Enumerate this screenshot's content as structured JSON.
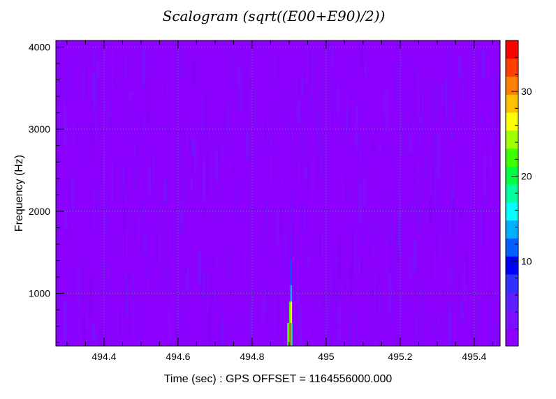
{
  "chart_data": {
    "type": "heatmap",
    "title": "Scalogram (sqrt((E00+E90)/2))",
    "xlabel": "Time (sec) : GPS OFFSET = 1164556000.000",
    "ylabel": "Frequency (Hz)",
    "xlim": [
      494.27,
      495.47
    ],
    "ylim": [
      360,
      4080
    ],
    "x_ticks": [
      494.4,
      494.6,
      494.8,
      495,
      495.2,
      495.4
    ],
    "x_tick_labels": [
      "494.4",
      "494.6",
      "494.8",
      "495",
      "495.2",
      "495.4"
    ],
    "y_ticks": [
      1000,
      2000,
      3000,
      4000
    ],
    "y_tick_labels": [
      "1000",
      "2000",
      "3000",
      "4000"
    ],
    "grid": true,
    "colorbar": {
      "min": 0,
      "max": 36,
      "ticks": [
        10,
        20,
        30
      ],
      "tick_labels": [
        "10",
        "20",
        "30"
      ],
      "palette": [
        "#8b00ff",
        "#7a10ff",
        "#5a20ff",
        "#3030ff",
        "#0000ff",
        "#0060ff",
        "#00b0ff",
        "#00ffff",
        "#00ffa0",
        "#00ff40",
        "#40ff00",
        "#a0ff00",
        "#ffff00",
        "#ffc000",
        "#ff8000",
        "#ff4000",
        "#ff0000"
      ]
    },
    "background_value": 1.5,
    "event": {
      "time": 494.905,
      "cells": [
        {
          "t0": 494.895,
          "t1": 494.901,
          "f0": 360,
          "f1": 640,
          "value": 23
        },
        {
          "t0": 494.901,
          "t1": 494.905,
          "f0": 360,
          "f1": 640,
          "value": 33
        },
        {
          "t0": 494.905,
          "t1": 494.909,
          "f0": 360,
          "f1": 640,
          "value": 18
        },
        {
          "t0": 494.9,
          "t1": 494.904,
          "f0": 640,
          "f1": 900,
          "value": 22
        },
        {
          "t0": 494.904,
          "t1": 494.908,
          "f0": 640,
          "f1": 900,
          "value": 26
        },
        {
          "t0": 494.903,
          "t1": 494.908,
          "f0": 900,
          "f1": 1100,
          "value": 14
        },
        {
          "t0": 494.904,
          "t1": 494.907,
          "f0": 1100,
          "f1": 1400,
          "value": 11
        },
        {
          "t0": 494.905,
          "t1": 494.907,
          "f0": 1400,
          "f1": 1700,
          "value": 8
        },
        {
          "t0": 494.905,
          "t1": 494.907,
          "f0": 1700,
          "f1": 2200,
          "value": 5
        }
      ]
    }
  }
}
